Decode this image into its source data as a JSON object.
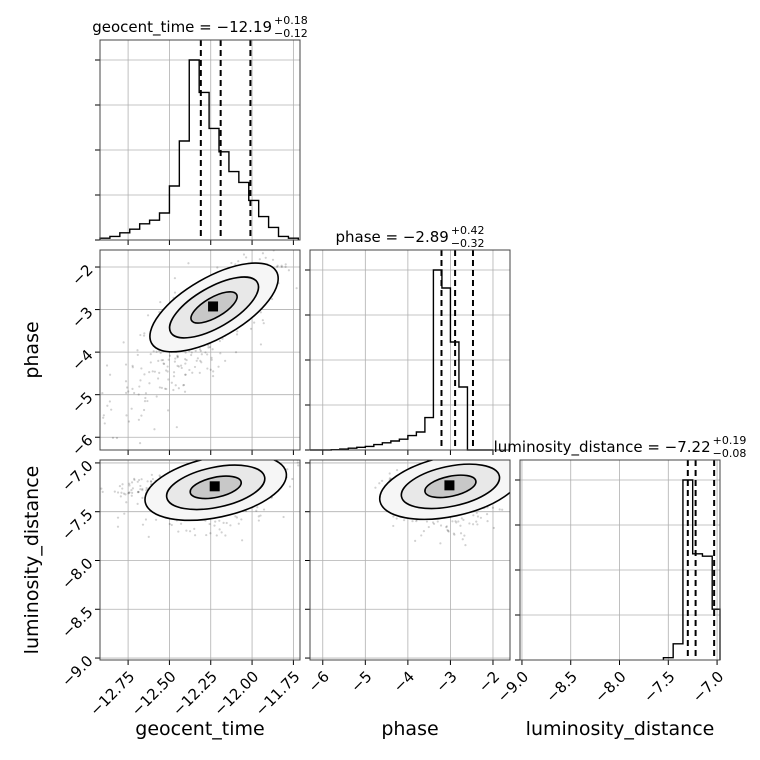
{
  "chart_data": {
    "type": "corner",
    "parameters": [
      "geocent_time",
      "phase",
      "luminosity_distance"
    ],
    "axis_labels": {
      "geocent_time": "geocent_time",
      "phase": "phase",
      "luminosity_distance": "luminosity_distance"
    },
    "ranges": {
      "geocent_time": [
        -12.92,
        -11.71
      ],
      "phase": [
        -6.3,
        -1.6
      ],
      "luminosity_distance": [
        -9.02,
        -6.97
      ]
    },
    "ticks": {
      "geocent_time": [
        {
          "v": -12.75,
          "t": "−12.75"
        },
        {
          "v": -12.5,
          "t": "−12.50"
        },
        {
          "v": -12.25,
          "t": "−12.25"
        },
        {
          "v": -12.0,
          "t": "−12.00"
        },
        {
          "v": -11.75,
          "t": "−11.75"
        }
      ],
      "phase": [
        {
          "v": -6,
          "t": "−6"
        },
        {
          "v": -5,
          "t": "−5"
        },
        {
          "v": -4,
          "t": "−4"
        },
        {
          "v": -3,
          "t": "−3"
        },
        {
          "v": -2,
          "t": "−2"
        }
      ],
      "luminosity_distance": [
        {
          "v": -9.0,
          "t": "−9.0"
        },
        {
          "v": -8.5,
          "t": "−8.5"
        },
        {
          "v": -8.0,
          "t": "−8.0"
        },
        {
          "v": -7.5,
          "t": "−7.5"
        },
        {
          "v": -7.0,
          "t": "−7.0"
        }
      ]
    },
    "titles": [
      {
        "param": "geocent_time",
        "main": "geocent_time = −12.19",
        "sup": "+0.18",
        "sub": "−0.12"
      },
      {
        "param": "phase",
        "main": "phase = −2.89",
        "sup": "+0.42",
        "sub": "−0.32"
      },
      {
        "param": "luminosity_distance",
        "main": "luminosity_distance = −7.22",
        "sup": "+0.19",
        "sub": "−0.08"
      }
    ],
    "histograms": {
      "geocent_time": {
        "edges": [
          -12.92,
          -12.86,
          -12.8,
          -12.74,
          -12.68,
          -12.62,
          -12.56,
          -12.5,
          -12.44,
          -12.38,
          -12.32,
          -12.26,
          -12.2,
          -12.14,
          -12.08,
          -12.02,
          -11.96,
          -11.9,
          -11.84,
          -11.78,
          -11.72
        ],
        "counts": [
          0.01,
          0.02,
          0.04,
          0.06,
          0.09,
          0.11,
          0.15,
          0.3,
          0.55,
          1.0,
          0.82,
          0.62,
          0.49,
          0.38,
          0.32,
          0.22,
          0.13,
          0.07,
          0.02,
          0.01
        ],
        "quantiles": [
          -12.31,
          -12.19,
          -12.01
        ]
      },
      "phase": {
        "edges": [
          -6.3,
          -6.0,
          -5.8,
          -5.6,
          -5.4,
          -5.2,
          -5.0,
          -4.8,
          -4.6,
          -4.4,
          -4.2,
          -4.0,
          -3.8,
          -3.6,
          -3.4,
          -3.2,
          -3.0,
          -2.8,
          -2.6,
          -2.4,
          -2.2,
          -2.0
        ],
        "counts": [
          0.0,
          0.0,
          0.002,
          0.005,
          0.01,
          0.015,
          0.02,
          0.03,
          0.04,
          0.05,
          0.06,
          0.08,
          0.1,
          0.18,
          1.0,
          0.9,
          0.6,
          0.35,
          0.0,
          0.0,
          0.0
        ],
        "quantiles": [
          -3.21,
          -2.89,
          -2.47
        ]
      },
      "luminosity_distance": {
        "edges": [
          -7.55,
          -7.45,
          -7.35,
          -7.25,
          -7.15,
          -7.05,
          -6.97
        ],
        "counts": [
          0.01,
          0.07,
          0.78,
          0.46,
          0.45,
          0.22
        ],
        "quantiles": [
          -7.3,
          -7.22,
          -7.03
        ]
      }
    },
    "density_colors": {
      "level_fills": [
        "#f6f6f6",
        "#e8e8e8",
        "#c8c8c8",
        "#8a8a8a",
        "#000000"
      ]
    }
  }
}
